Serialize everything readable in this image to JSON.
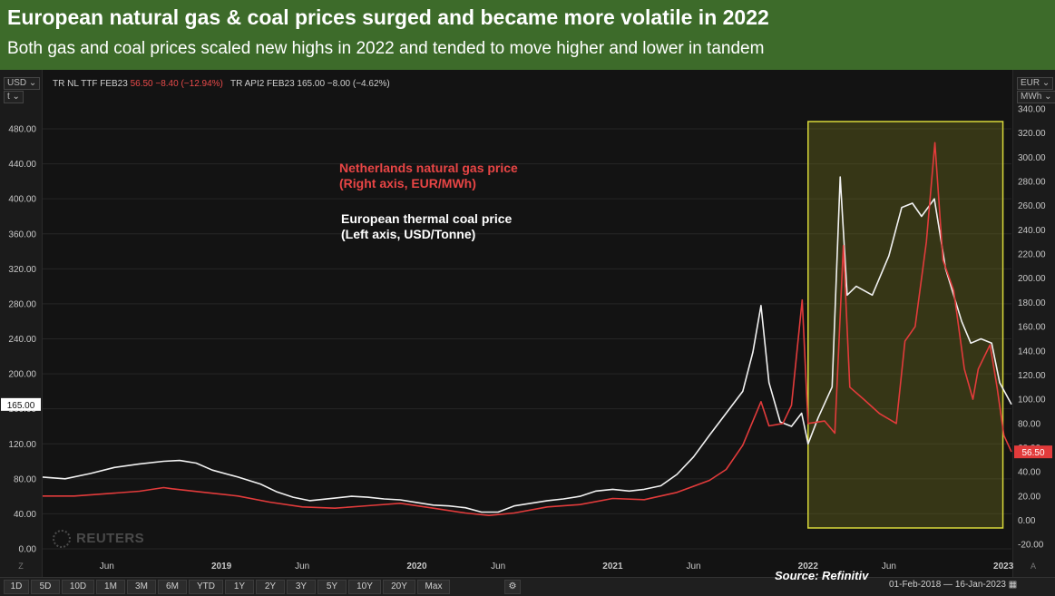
{
  "header": {
    "title": "European natural gas & coal prices surged and became more volatile in 2022",
    "subtitle": "Both gas and coal prices scaled new highs in 2022 and tended to move higher and lower in tandem"
  },
  "toolbar": {
    "left_currency": "USD",
    "left_unit": "t",
    "right_currency": "EUR",
    "right_unit": "MWh",
    "gas_ticker": "TR NL TTF FEB23",
    "gas_quote": "56.50 −8.40 (−12.94%)",
    "coal_ticker": "TR API2 FEB23",
    "coal_quote": "165.00 −8.00 (−4.62%)"
  },
  "annotations": {
    "gas_line1": "Netherlands natural gas price",
    "gas_line2": "(Right axis, EUR/MWh)",
    "coal_line1": "European thermal coal price",
    "coal_line2": "(Left axis, USD/Tonne)"
  },
  "watermark": "REUTERS",
  "source": "Source: Refinitiv",
  "ranges": [
    "1D",
    "5D",
    "10D",
    "1M",
    "3M",
    "6M",
    "YTD",
    "1Y",
    "2Y",
    "3Y",
    "5Y",
    "10Y",
    "20Y",
    "Max"
  ],
  "date_range": "01-Feb-2018 — 16-Jan-2023",
  "axis_corner_left": "Z",
  "axis_corner_right": "A",
  "colors": {
    "gas": "#e23b3b",
    "coal": "#f2f2f2",
    "highlight_border": "#d8d83a",
    "header_bg": "#3d6b2a"
  },
  "chart_data": {
    "type": "line",
    "x_range": [
      "2018-02-01",
      "2023-01-16"
    ],
    "x_tick_labels": [
      "Jun",
      "2019",
      "Jun",
      "2020",
      "Jun",
      "2021",
      "Jun",
      "2022",
      "Jun",
      "2023"
    ],
    "x_tick_dates": [
      "2018-06-01",
      "2019-01-01",
      "2019-06-01",
      "2020-01-01",
      "2020-06-01",
      "2021-01-01",
      "2021-06-01",
      "2022-01-01",
      "2022-06-01",
      "2023-01-01"
    ],
    "y_left": {
      "unit": "USD/t",
      "range": [
        0,
        480
      ],
      "ticks": [
        "0.00",
        "40.00",
        "80.00",
        "120.00",
        "160.00",
        "200.00",
        "240.00",
        "280.00",
        "320.00",
        "360.00",
        "400.00",
        "440.00",
        "480.00"
      ]
    },
    "y_right": {
      "unit": "EUR/MWh",
      "range": [
        -20,
        340
      ],
      "ticks": [
        "-20.00",
        "0.00",
        "20.00",
        "40.00",
        "60.00",
        "80.00",
        "100.00",
        "120.00",
        "140.00",
        "160.00",
        "180.00",
        "200.00",
        "220.00",
        "240.00",
        "260.00",
        "280.00",
        "300.00",
        "320.00",
        "340.00"
      ]
    },
    "last_values": {
      "coal": "165.00",
      "gas": "56.50"
    },
    "highlight_range": [
      "2022-01-01",
      "2022-12-31"
    ],
    "series": [
      {
        "name": "European thermal coal price",
        "axis": "left",
        "points": [
          [
            "2018-02-01",
            82
          ],
          [
            "2018-03-15",
            80
          ],
          [
            "2018-05-01",
            86
          ],
          [
            "2018-06-15",
            93
          ],
          [
            "2018-08-01",
            97
          ],
          [
            "2018-09-15",
            100
          ],
          [
            "2018-10-15",
            101
          ],
          [
            "2018-11-15",
            98
          ],
          [
            "2018-12-15",
            90
          ],
          [
            "2019-02-01",
            82
          ],
          [
            "2019-03-15",
            74
          ],
          [
            "2019-04-15",
            65
          ],
          [
            "2019-05-15",
            59
          ],
          [
            "2019-06-15",
            55
          ],
          [
            "2019-08-01",
            58
          ],
          [
            "2019-09-01",
            60
          ],
          [
            "2019-10-01",
            59
          ],
          [
            "2019-11-01",
            57
          ],
          [
            "2019-12-01",
            56
          ],
          [
            "2020-01-01",
            53
          ],
          [
            "2020-02-01",
            50
          ],
          [
            "2020-03-01",
            49
          ],
          [
            "2020-04-01",
            47
          ],
          [
            "2020-05-01",
            42
          ],
          [
            "2020-06-01",
            42
          ],
          [
            "2020-07-01",
            49
          ],
          [
            "2020-08-01",
            52
          ],
          [
            "2020-09-01",
            55
          ],
          [
            "2020-10-01",
            57
          ],
          [
            "2020-11-01",
            60
          ],
          [
            "2020-12-01",
            66
          ],
          [
            "2021-01-01",
            68
          ],
          [
            "2021-02-01",
            66
          ],
          [
            "2021-03-01",
            68
          ],
          [
            "2021-04-01",
            72
          ],
          [
            "2021-05-01",
            85
          ],
          [
            "2021-06-01",
            105
          ],
          [
            "2021-07-01",
            130
          ],
          [
            "2021-08-01",
            155
          ],
          [
            "2021-09-01",
            180
          ],
          [
            "2021-09-20",
            225
          ],
          [
            "2021-10-05",
            278
          ],
          [
            "2021-10-20",
            190
          ],
          [
            "2021-11-10",
            145
          ],
          [
            "2021-12-01",
            140
          ],
          [
            "2021-12-20",
            155
          ],
          [
            "2022-01-01",
            120
          ],
          [
            "2022-01-20",
            150
          ],
          [
            "2022-02-15",
            185
          ],
          [
            "2022-03-02",
            425
          ],
          [
            "2022-03-15",
            290
          ],
          [
            "2022-04-01",
            300
          ],
          [
            "2022-05-01",
            290
          ],
          [
            "2022-06-01",
            335
          ],
          [
            "2022-06-25",
            390
          ],
          [
            "2022-07-15",
            395
          ],
          [
            "2022-08-01",
            380
          ],
          [
            "2022-08-25",
            400
          ],
          [
            "2022-09-15",
            320
          ],
          [
            "2022-10-15",
            260
          ],
          [
            "2022-11-01",
            235
          ],
          [
            "2022-11-20",
            240
          ],
          [
            "2022-12-10",
            235
          ],
          [
            "2022-12-25",
            190
          ],
          [
            "2023-01-16",
            165
          ]
        ]
      },
      {
        "name": "Netherlands natural gas price",
        "axis": "right",
        "points": [
          [
            "2018-02-01",
            20
          ],
          [
            "2018-04-01",
            20
          ],
          [
            "2018-06-01",
            22
          ],
          [
            "2018-08-01",
            24
          ],
          [
            "2018-09-15",
            27
          ],
          [
            "2018-10-01",
            26
          ],
          [
            "2018-12-01",
            23
          ],
          [
            "2019-02-01",
            20
          ],
          [
            "2019-04-01",
            15
          ],
          [
            "2019-06-01",
            11
          ],
          [
            "2019-08-01",
            10
          ],
          [
            "2019-10-01",
            12
          ],
          [
            "2019-12-01",
            14
          ],
          [
            "2020-02-01",
            10
          ],
          [
            "2020-04-01",
            6
          ],
          [
            "2020-05-15",
            4
          ],
          [
            "2020-07-01",
            6
          ],
          [
            "2020-09-01",
            11
          ],
          [
            "2020-11-01",
            13
          ],
          [
            "2021-01-01",
            18
          ],
          [
            "2021-03-01",
            17
          ],
          [
            "2021-05-01",
            23
          ],
          [
            "2021-07-01",
            33
          ],
          [
            "2021-08-01",
            42
          ],
          [
            "2021-09-01",
            62
          ],
          [
            "2021-10-05",
            98
          ],
          [
            "2021-10-20",
            78
          ],
          [
            "2021-11-15",
            80
          ],
          [
            "2021-12-01",
            95
          ],
          [
            "2021-12-21",
            182
          ],
          [
            "2022-01-01",
            80
          ],
          [
            "2022-02-01",
            82
          ],
          [
            "2022-02-20",
            72
          ],
          [
            "2022-03-08",
            227
          ],
          [
            "2022-03-20",
            110
          ],
          [
            "2022-04-15",
            100
          ],
          [
            "2022-05-15",
            88
          ],
          [
            "2022-06-15",
            80
          ],
          [
            "2022-07-01",
            148
          ],
          [
            "2022-07-20",
            160
          ],
          [
            "2022-08-10",
            230
          ],
          [
            "2022-08-26",
            312
          ],
          [
            "2022-09-10",
            215
          ],
          [
            "2022-09-30",
            190
          ],
          [
            "2022-10-20",
            125
          ],
          [
            "2022-11-05",
            100
          ],
          [
            "2022-11-15",
            125
          ],
          [
            "2022-12-07",
            145
          ],
          [
            "2022-12-20",
            110
          ],
          [
            "2023-01-02",
            70
          ],
          [
            "2023-01-16",
            56.5
          ]
        ]
      }
    ]
  }
}
